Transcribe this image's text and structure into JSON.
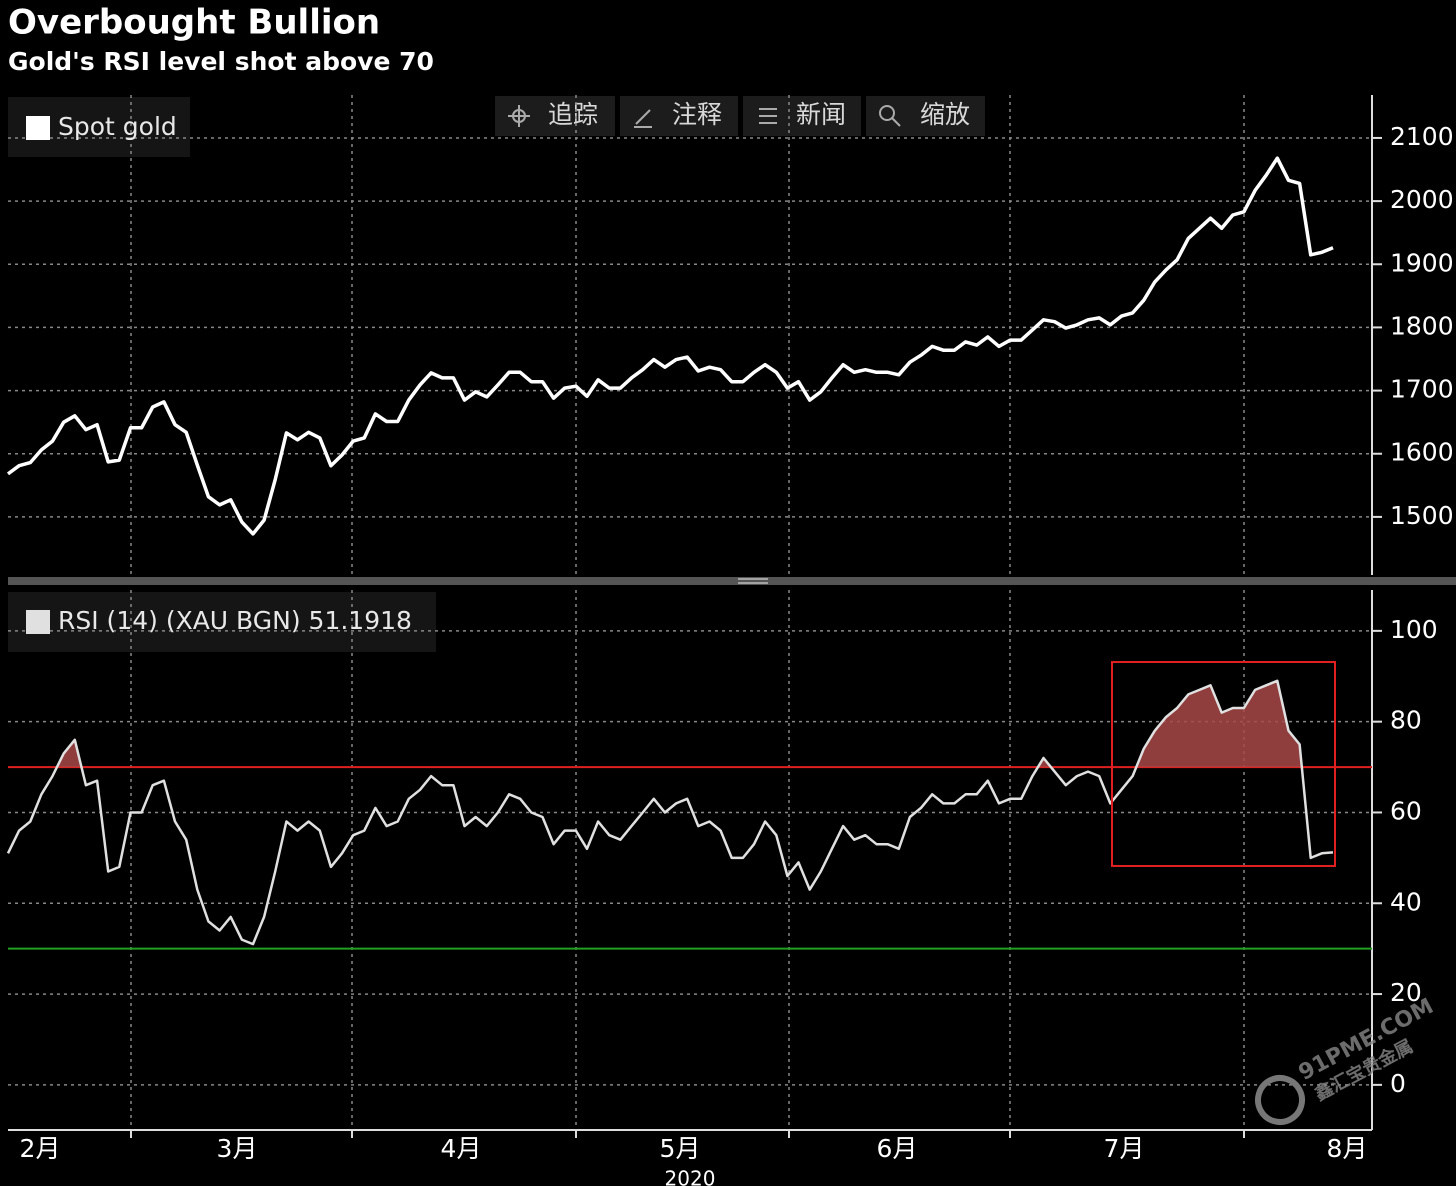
{
  "header": {
    "title": "Overbought Bullion",
    "subtitle": "Gold's RSI level shot above 70"
  },
  "toolbar": [
    "追踪",
    "注释",
    "新闻",
    "缩放"
  ],
  "x_axis": {
    "months": [
      "2月",
      "3月",
      "4月",
      "5月",
      "6月",
      "7月",
      "8月"
    ],
    "year": "2020"
  },
  "watermark": {
    "brand": "91PME.COM",
    "name": "鑫汇宝贵金属"
  },
  "chart_data": [
    {
      "type": "line",
      "series": [
        {
          "name": "Spot gold",
          "color": "#ffffff",
          "values": [
            1568,
            1581,
            1586,
            1606,
            1620,
            1650,
            1660,
            1638,
            1646,
            1587,
            1590,
            1641,
            1641,
            1674,
            1682,
            1646,
            1634,
            1582,
            1532,
            1519,
            1527,
            1492,
            1473,
            1495,
            1559,
            1633,
            1622,
            1634,
            1625,
            1581,
            1598,
            1620,
            1625,
            1663,
            1651,
            1651,
            1685,
            1709,
            1728,
            1720,
            1720,
            1685,
            1698,
            1690,
            1709,
            1729,
            1729,
            1714,
            1714,
            1688,
            1704,
            1707,
            1691,
            1717,
            1704,
            1704,
            1720,
            1733,
            1749,
            1737,
            1749,
            1753,
            1731,
            1737,
            1733,
            1714,
            1714,
            1729,
            1741,
            1729,
            1704,
            1714,
            1685,
            1698,
            1720,
            1741,
            1729,
            1733,
            1729,
            1729,
            1725,
            1745,
            1756,
            1770,
            1764,
            1764,
            1777,
            1772,
            1785,
            1770,
            1780,
            1780,
            1796,
            1812,
            1809,
            1799,
            1804,
            1812,
            1815,
            1804,
            1818,
            1823,
            1843,
            1872,
            1891,
            1907,
            1941,
            1957,
            1973,
            1957,
            1978,
            1983,
            2017,
            2041,
            2068,
            2033,
            2028,
            1915,
            1919,
            1926
          ]
        }
      ],
      "ylim": [
        1408,
        2168
      ],
      "yticks": [
        1500,
        1600,
        1700,
        1800,
        1900,
        2000,
        2100
      ],
      "grid": true
    },
    {
      "type": "line",
      "series": [
        {
          "name": "RSI (14) (XAU BGN) 51.1918",
          "color": "#e0e0e0",
          "values": [
            51,
            56,
            58,
            64,
            68,
            73,
            76,
            66,
            67,
            47,
            48,
            60,
            60,
            66,
            67,
            58,
            54,
            43,
            36,
            34,
            37,
            32,
            31,
            37,
            47,
            58,
            56,
            58,
            56,
            48,
            51,
            55,
            56,
            61,
            57,
            58,
            63,
            65,
            68,
            66,
            66,
            57,
            59,
            57,
            60,
            64,
            63,
            60,
            59,
            53,
            56,
            56,
            52,
            58,
            55,
            54,
            57,
            60,
            63,
            60,
            62,
            63,
            57,
            58,
            56,
            50,
            50,
            53,
            58,
            55,
            46,
            49,
            43,
            47,
            52,
            57,
            54,
            55,
            53,
            53,
            52,
            59,
            61,
            64,
            62,
            62,
            64,
            64,
            67,
            62,
            63,
            63,
            68,
            72,
            69,
            66,
            68,
            69,
            68,
            62,
            65,
            68,
            74,
            78,
            81,
            83,
            86,
            87,
            88,
            82,
            83,
            83,
            87,
            88,
            89,
            78,
            75,
            50,
            51,
            51.2
          ]
        }
      ],
      "ylim": [
        -9.5,
        109
      ],
      "yticks": [
        0,
        20,
        40,
        60,
        80,
        100
      ],
      "grid": true,
      "reference_lines": [
        {
          "value": 70,
          "color": "#e02020"
        },
        {
          "value": 30,
          "color": "#22a022"
        }
      ],
      "overbought_fill": "#a84848"
    }
  ]
}
